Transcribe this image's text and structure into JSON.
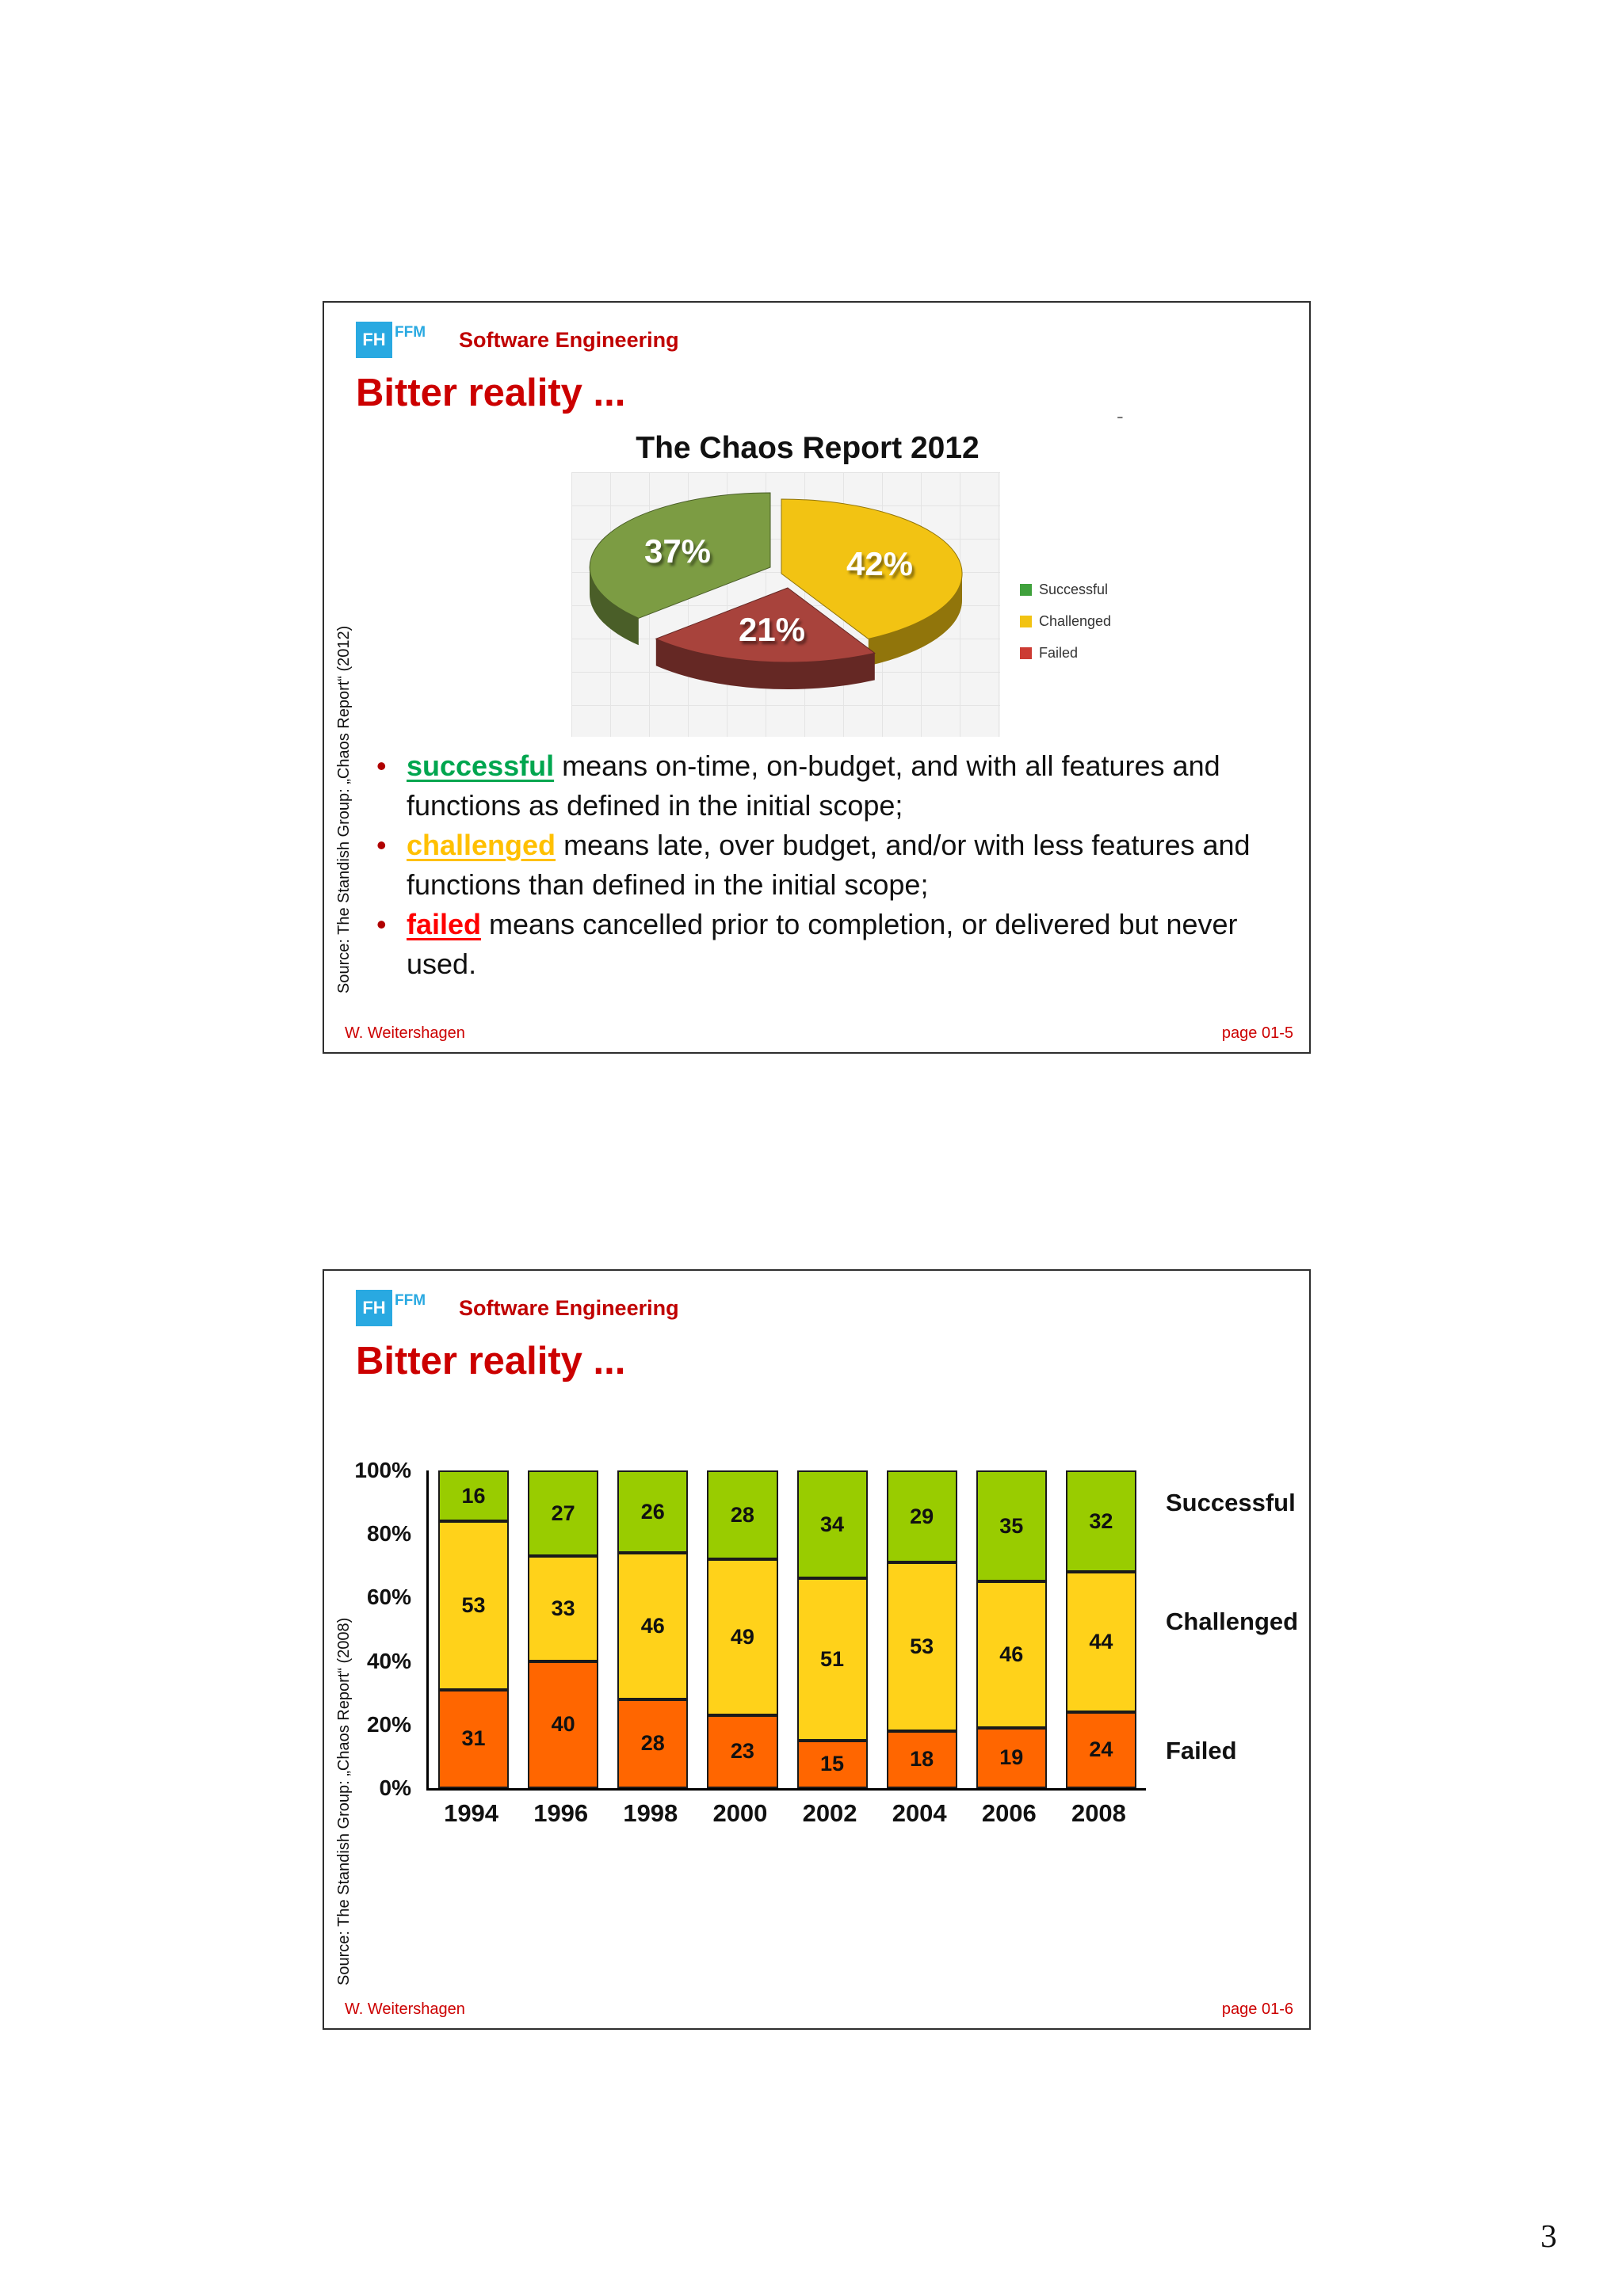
{
  "page": {
    "number": "3"
  },
  "slide1": {
    "logo": {
      "fh": "FH",
      "ffm": "FFM"
    },
    "course": "Software Engineering",
    "title": "Bitter reality ...",
    "stray_dash": "-",
    "source_note": "Source: The Standish Group: „Chaos Report“ (2012)",
    "chart_title": "The Chaos Report 2012",
    "bullets": [
      {
        "term": "successful",
        "color": "#00a64f",
        "rest": " means on-time, on-budget, and with all features and functions as defined in the initial scope;"
      },
      {
        "term": "challenged",
        "color": "#ffc000",
        "rest": " means late, over budget, and/or with less features and functions than defined in the initial scope;"
      },
      {
        "term": "failed",
        "color": "#ff0000",
        "rest": " means cancelled prior to completion, or delivered but never used."
      }
    ],
    "footer": {
      "author": "W. Weitershagen",
      "page": "page 01-5"
    }
  },
  "slide2": {
    "logo": {
      "fh": "FH",
      "ffm": "FFM"
    },
    "course": "Software Engineering",
    "title": "Bitter reality ...",
    "source_note": "Source: The Standish Group: „Chaos Report“ (2008)",
    "footer": {
      "author": "W. Weitershagen",
      "page": "page 01-6"
    }
  },
  "chart_data": [
    {
      "type": "pie",
      "title": "The Chaos Report 2012",
      "labels": [
        "Challenged",
        "Failed",
        "Successful"
      ],
      "values": [
        42,
        21,
        37
      ],
      "colors": [
        "#f2c313",
        "#a8433c",
        "#7c9c43"
      ],
      "legend": [
        {
          "label": "Successful",
          "color": "#3fa13c"
        },
        {
          "label": "Challenged",
          "color": "#f2c313"
        },
        {
          "label": "Failed",
          "color": "#cc3b33"
        }
      ]
    },
    {
      "type": "stacked-bar",
      "title": "",
      "categories": [
        "1994",
        "1996",
        "1998",
        "2000",
        "2002",
        "2004",
        "2006",
        "2008"
      ],
      "series": [
        {
          "name": "Failed",
          "color": "#ff6600",
          "values": [
            31,
            40,
            28,
            23,
            15,
            18,
            19,
            24
          ]
        },
        {
          "name": "Challenged",
          "color": "#ffd21a",
          "values": [
            53,
            33,
            46,
            49,
            51,
            53,
            46,
            44
          ]
        },
        {
          "name": "Successful",
          "color": "#99cc00",
          "values": [
            16,
            27,
            26,
            28,
            34,
            29,
            35,
            32
          ]
        }
      ],
      "ylim": [
        0,
        100
      ],
      "ytick_labels": [
        "0%",
        "20%",
        "40%",
        "60%",
        "80%",
        "100%"
      ],
      "right_labels": [
        "Successful",
        "Challenged",
        "Failed"
      ],
      "legend_position": "right"
    }
  ]
}
